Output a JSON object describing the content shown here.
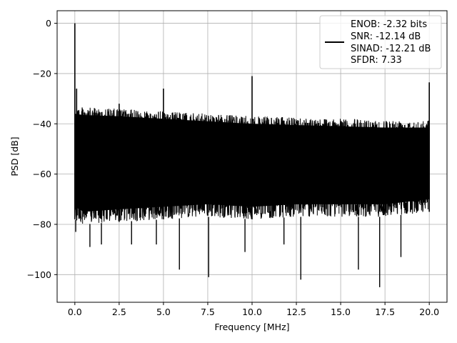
{
  "chart_data": {
    "type": "line",
    "title": "",
    "xlabel": "Frequency [MHz]",
    "ylabel": "PSD [dB]",
    "xlim": [
      -1.0,
      21.0
    ],
    "ylim": [
      -111,
      5
    ],
    "xticks": [
      0.0,
      2.5,
      5.0,
      7.5,
      10.0,
      12.5,
      15.0,
      17.5,
      20.0
    ],
    "xtick_labels": [
      "0.0",
      "2.5",
      "5.0",
      "7.5",
      "10.0",
      "12.5",
      "15.0",
      "17.5",
      "20.0"
    ],
    "yticks": [
      0,
      -20,
      -40,
      -60,
      -80,
      -100
    ],
    "ytick_labels": [
      "0",
      "−20",
      "−40",
      "−60",
      "−80",
      "−100"
    ],
    "grid": true,
    "legend_position": "top-right",
    "series": [
      {
        "color": "#000000",
        "legend_lines": [
          "ENOB: -2.32 bits",
          "SNR: -12.14 dB",
          "SINAD: -12.21 dB",
          "SFDR: 7.33"
        ],
        "x_range": [
          0.0,
          20.0
        ],
        "upper_envelope": [
          [
            0.0,
            -33
          ],
          [
            0.5,
            -33.5
          ],
          [
            2.5,
            -34
          ],
          [
            5.0,
            -35
          ],
          [
            7.5,
            -36
          ],
          [
            10.0,
            -37
          ],
          [
            12.5,
            -37.5
          ],
          [
            15.0,
            -38
          ],
          [
            17.5,
            -38.5
          ],
          [
            20.0,
            -38.5
          ]
        ],
        "lower_envelope": [
          [
            0.0,
            -78
          ],
          [
            0.5,
            -80
          ],
          [
            2.5,
            -79
          ],
          [
            5.0,
            -78
          ],
          [
            7.5,
            -77
          ],
          [
            10.0,
            -78
          ],
          [
            12.5,
            -77
          ],
          [
            15.0,
            -77
          ],
          [
            17.5,
            -77
          ],
          [
            20.0,
            -75
          ]
        ],
        "spikes": [
          {
            "x": 0.0,
            "y": 0
          },
          {
            "x": 0.1,
            "y": -26
          },
          {
            "x": 2.5,
            "y": -32
          },
          {
            "x": 5.0,
            "y": -26
          },
          {
            "x": 10.0,
            "y": -21
          },
          {
            "x": 20.0,
            "y": -23.5
          }
        ],
        "dips": [
          {
            "x": 0.05,
            "y": -83
          },
          {
            "x": 0.85,
            "y": -89
          },
          {
            "x": 1.5,
            "y": -88
          },
          {
            "x": 3.2,
            "y": -88
          },
          {
            "x": 4.6,
            "y": -88
          },
          {
            "x": 5.9,
            "y": -98
          },
          {
            "x": 7.55,
            "y": -101
          },
          {
            "x": 9.6,
            "y": -91
          },
          {
            "x": 11.8,
            "y": -88
          },
          {
            "x": 12.75,
            "y": -102
          },
          {
            "x": 16.0,
            "y": -98
          },
          {
            "x": 17.2,
            "y": -105
          },
          {
            "x": 18.4,
            "y": -93
          }
        ]
      }
    ]
  }
}
